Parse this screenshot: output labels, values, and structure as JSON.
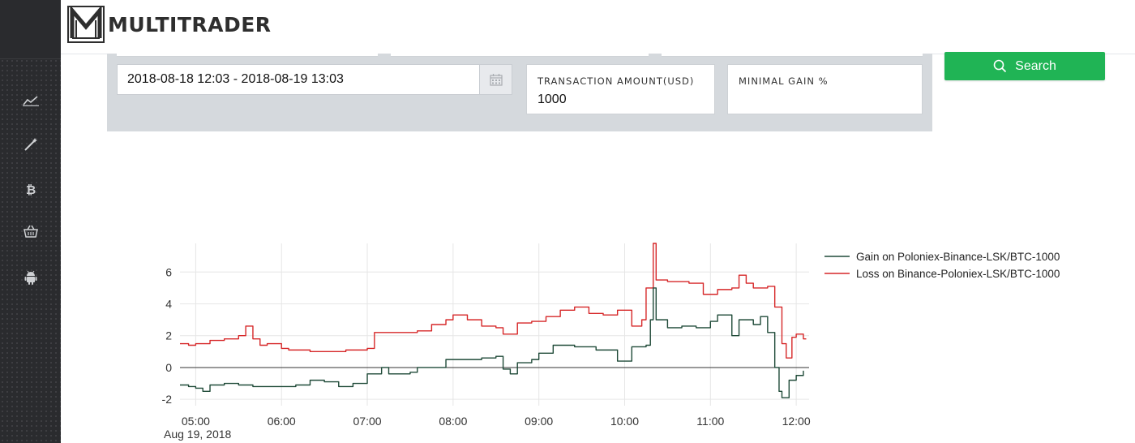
{
  "app": {
    "brand": "MULTITRADER"
  },
  "sidebar": {
    "items": [
      {
        "icon": "line-chart-icon"
      },
      {
        "icon": "wand-icon"
      },
      {
        "icon": "bitcoin-icon"
      },
      {
        "icon": "basket-icon"
      },
      {
        "icon": "android-icon"
      }
    ]
  },
  "filters": {
    "date_range": "2018-08-18 12:03 - 2018-08-19 13:03",
    "transaction_amount_label": "TRANSACTION AMOUNT(USD)",
    "transaction_amount_value": "1000",
    "minimal_gain_label": "MINIMAL GAIN %",
    "minimal_gain_value": "",
    "search_label": "Search"
  },
  "colors": {
    "search_button": "#20b455",
    "gain_series": "#1f4a38",
    "loss_series": "#d62728",
    "sidebar_bg": "#2a2b2e",
    "panel_bg": "#d5d9dd"
  },
  "chart_data": {
    "type": "line",
    "x_date_label": "Aug 19, 2018",
    "x_ticks": [
      "05:00",
      "06:00",
      "07:00",
      "08:00",
      "09:00",
      "10:00",
      "11:00",
      "12:00"
    ],
    "xlim": [
      "04:49",
      "12:09"
    ],
    "y_ticks": [
      "-2",
      "0",
      "2",
      "4",
      "6"
    ],
    "ylim": [
      -2.4,
      7.8
    ],
    "zero_line": true,
    "grid": true,
    "legend_position": "right",
    "series": [
      {
        "name": "Gain on Poloniex-Binance-LSK/BTC-1000",
        "color": "#1f4a38",
        "points": [
          [
            "04:49",
            -1.1
          ],
          [
            "04:55",
            -1.2
          ],
          [
            "05:00",
            -1.3
          ],
          [
            "05:05",
            -1.5
          ],
          [
            "05:10",
            -1.1
          ],
          [
            "05:20",
            -1.0
          ],
          [
            "05:30",
            -1.1
          ],
          [
            "05:40",
            -1.2
          ],
          [
            "05:50",
            -1.2
          ],
          [
            "06:00",
            -1.2
          ],
          [
            "06:10",
            -1.1
          ],
          [
            "06:20",
            -0.8
          ],
          [
            "06:30",
            -0.9
          ],
          [
            "06:40",
            -1.2
          ],
          [
            "06:50",
            -1.0
          ],
          [
            "07:00",
            -0.4
          ],
          [
            "07:10",
            0.0
          ],
          [
            "07:15",
            -0.4
          ],
          [
            "07:30",
            -0.3
          ],
          [
            "07:35",
            0.0
          ],
          [
            "07:45",
            0.0
          ],
          [
            "07:55",
            0.5
          ],
          [
            "08:05",
            0.5
          ],
          [
            "08:20",
            0.6
          ],
          [
            "08:30",
            0.7
          ],
          [
            "08:35",
            -0.1
          ],
          [
            "08:40",
            -0.4
          ],
          [
            "08:45",
            0.3
          ],
          [
            "08:55",
            0.5
          ],
          [
            "09:00",
            0.9
          ],
          [
            "09:10",
            1.4
          ],
          [
            "09:25",
            1.3
          ],
          [
            "09:40",
            1.1
          ],
          [
            "09:50",
            1.1
          ],
          [
            "09:55",
            0.4
          ],
          [
            "10:05",
            1.3
          ],
          [
            "10:15",
            1.4
          ],
          [
            "10:18",
            3.0
          ],
          [
            "10:20",
            5.0
          ],
          [
            "10:22",
            3.0
          ],
          [
            "10:30",
            2.5
          ],
          [
            "10:40",
            2.6
          ],
          [
            "10:50",
            2.5
          ],
          [
            "11:00",
            2.9
          ],
          [
            "11:05",
            3.3
          ],
          [
            "11:15",
            2.0
          ],
          [
            "11:20",
            3.0
          ],
          [
            "11:30",
            2.7
          ],
          [
            "11:35",
            3.2
          ],
          [
            "11:40",
            2.2
          ],
          [
            "11:45",
            0.0
          ],
          [
            "11:48",
            -1.5
          ],
          [
            "11:50",
            -1.9
          ],
          [
            "11:55",
            -0.8
          ],
          [
            "12:00",
            -0.5
          ],
          [
            "12:05",
            -0.2
          ]
        ]
      },
      {
        "name": "Loss on Binance-Poloniex-LSK/BTC-1000",
        "color": "#d62728",
        "points": [
          [
            "04:49",
            1.5
          ],
          [
            "04:55",
            1.4
          ],
          [
            "05:00",
            1.5
          ],
          [
            "05:10",
            1.7
          ],
          [
            "05:20",
            1.8
          ],
          [
            "05:30",
            2.0
          ],
          [
            "05:35",
            2.6
          ],
          [
            "05:40",
            1.8
          ],
          [
            "05:45",
            1.4
          ],
          [
            "05:50",
            1.5
          ],
          [
            "06:00",
            1.2
          ],
          [
            "06:05",
            1.1
          ],
          [
            "06:10",
            1.1
          ],
          [
            "06:20",
            1.0
          ],
          [
            "06:30",
            1.0
          ],
          [
            "06:45",
            1.1
          ],
          [
            "07:00",
            1.2
          ],
          [
            "07:05",
            2.2
          ],
          [
            "07:20",
            2.2
          ],
          [
            "07:35",
            2.3
          ],
          [
            "07:45",
            2.7
          ],
          [
            "07:55",
            3.0
          ],
          [
            "08:00",
            3.3
          ],
          [
            "08:10",
            3.0
          ],
          [
            "08:20",
            2.6
          ],
          [
            "08:30",
            2.5
          ],
          [
            "08:35",
            2.1
          ],
          [
            "08:45",
            2.8
          ],
          [
            "08:55",
            2.9
          ],
          [
            "09:05",
            3.2
          ],
          [
            "09:15",
            3.6
          ],
          [
            "09:25",
            3.8
          ],
          [
            "09:35",
            3.4
          ],
          [
            "09:45",
            3.3
          ],
          [
            "09:55",
            3.6
          ],
          [
            "10:05",
            2.6
          ],
          [
            "10:12",
            3.0
          ],
          [
            "10:15",
            5.0
          ],
          [
            "10:20",
            7.8
          ],
          [
            "10:22",
            5.5
          ],
          [
            "10:30",
            5.4
          ],
          [
            "10:45",
            5.3
          ],
          [
            "10:55",
            4.6
          ],
          [
            "11:05",
            4.9
          ],
          [
            "11:15",
            5.0
          ],
          [
            "11:20",
            5.8
          ],
          [
            "11:25",
            5.3
          ],
          [
            "11:30",
            5.0
          ],
          [
            "11:40",
            5.1
          ],
          [
            "11:45",
            3.8
          ],
          [
            "11:50",
            1.5
          ],
          [
            "11:53",
            0.6
          ],
          [
            "11:57",
            1.9
          ],
          [
            "12:00",
            2.1
          ],
          [
            "12:05",
            1.8
          ],
          [
            "12:07",
            1.8
          ]
        ]
      }
    ]
  }
}
